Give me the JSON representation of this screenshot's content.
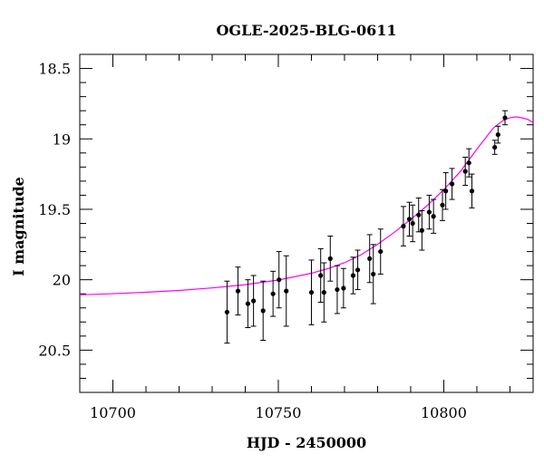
{
  "chart_data": {
    "type": "scatter",
    "title": "OGLE-2025-BLG-0611",
    "xlabel": "HJD - 2450000",
    "ylabel": "I magnitude",
    "xlim": [
      10690,
      10827
    ],
    "ylim": [
      20.8,
      18.4
    ],
    "y_inverted": true,
    "x_ticks": [
      10700,
      10750,
      10800
    ],
    "y_ticks": [
      18.5,
      19,
      19.5,
      20,
      20.5
    ],
    "x_tick_labels": [
      "10700",
      "10750",
      "10800"
    ],
    "y_tick_labels": [
      "18.5",
      "19",
      "19.5",
      "20",
      "20.5"
    ],
    "grid": false,
    "colors": {
      "points": "#000000",
      "model": "#ff00ff"
    },
    "series": [
      {
        "kind": "data-with-errors",
        "points": [
          {
            "x": 10734.5,
            "y": 20.23,
            "err": 0.22
          },
          {
            "x": 10737.8,
            "y": 20.08,
            "err": 0.17
          },
          {
            "x": 10740.8,
            "y": 20.17,
            "err": 0.17
          },
          {
            "x": 10742.5,
            "y": 20.15,
            "err": 0.18
          },
          {
            "x": 10745.4,
            "y": 20.22,
            "err": 0.21
          },
          {
            "x": 10748.4,
            "y": 20.1,
            "err": 0.16
          },
          {
            "x": 10750.2,
            "y": 20.0,
            "err": 0.2
          },
          {
            "x": 10752.4,
            "y": 20.08,
            "err": 0.25
          },
          {
            "x": 10760.0,
            "y": 20.09,
            "err": 0.23
          },
          {
            "x": 10762.8,
            "y": 19.97,
            "err": 0.19
          },
          {
            "x": 10763.8,
            "y": 20.09,
            "err": 0.21
          },
          {
            "x": 10765.7,
            "y": 19.85,
            "err": 0.16
          },
          {
            "x": 10767.8,
            "y": 20.07,
            "err": 0.17
          },
          {
            "x": 10769.7,
            "y": 20.06,
            "err": 0.14
          },
          {
            "x": 10772.6,
            "y": 19.97,
            "err": 0.13
          },
          {
            "x": 10774.0,
            "y": 19.93,
            "err": 0.14
          },
          {
            "x": 10777.6,
            "y": 19.85,
            "err": 0.17
          },
          {
            "x": 10778.7,
            "y": 19.96,
            "err": 0.21
          },
          {
            "x": 10780.9,
            "y": 19.8,
            "err": 0.16
          },
          {
            "x": 10787.8,
            "y": 19.62,
            "err": 0.14
          },
          {
            "x": 10789.6,
            "y": 19.57,
            "err": 0.12
          },
          {
            "x": 10790.6,
            "y": 19.6,
            "err": 0.13
          },
          {
            "x": 10792.4,
            "y": 19.54,
            "err": 0.12
          },
          {
            "x": 10793.4,
            "y": 19.65,
            "err": 0.14
          },
          {
            "x": 10795.6,
            "y": 19.52,
            "err": 0.12
          },
          {
            "x": 10796.9,
            "y": 19.55,
            "err": 0.12
          },
          {
            "x": 10799.6,
            "y": 19.47,
            "err": 0.11
          },
          {
            "x": 10800.6,
            "y": 19.37,
            "err": 0.13
          },
          {
            "x": 10802.5,
            "y": 19.32,
            "err": 0.11
          },
          {
            "x": 10806.5,
            "y": 19.23,
            "err": 0.1
          },
          {
            "x": 10807.6,
            "y": 19.17,
            "err": 0.1
          },
          {
            "x": 10808.5,
            "y": 19.37,
            "err": 0.12
          },
          {
            "x": 10815.4,
            "y": 19.06,
            "err": 0.05
          },
          {
            "x": 10816.4,
            "y": 18.97,
            "err": 0.06
          },
          {
            "x": 10818.5,
            "y": 18.85,
            "err": 0.05
          }
        ]
      },
      {
        "kind": "model",
        "points": [
          {
            "x": 10690,
            "y": 20.107
          },
          {
            "x": 10700,
            "y": 20.099
          },
          {
            "x": 10710,
            "y": 20.089
          },
          {
            "x": 10720,
            "y": 20.076
          },
          {
            "x": 10730,
            "y": 20.058
          },
          {
            "x": 10740,
            "y": 20.035
          },
          {
            "x": 10750,
            "y": 20.002
          },
          {
            "x": 10760,
            "y": 19.954
          },
          {
            "x": 10765,
            "y": 19.921
          },
          {
            "x": 10770,
            "y": 19.879
          },
          {
            "x": 10775,
            "y": 19.823
          },
          {
            "x": 10780,
            "y": 19.749
          },
          {
            "x": 10785,
            "y": 19.664
          },
          {
            "x": 10790,
            "y": 19.572
          },
          {
            "x": 10795,
            "y": 19.473
          },
          {
            "x": 10800,
            "y": 19.361
          },
          {
            "x": 10805,
            "y": 19.232
          },
          {
            "x": 10810,
            "y": 19.073
          },
          {
            "x": 10815,
            "y": 18.922
          },
          {
            "x": 10818,
            "y": 18.868
          },
          {
            "x": 10820,
            "y": 18.85
          },
          {
            "x": 10822,
            "y": 18.843
          },
          {
            "x": 10824,
            "y": 18.852
          },
          {
            "x": 10825.5,
            "y": 18.863
          },
          {
            "x": 10827,
            "y": 18.885
          }
        ]
      }
    ]
  }
}
